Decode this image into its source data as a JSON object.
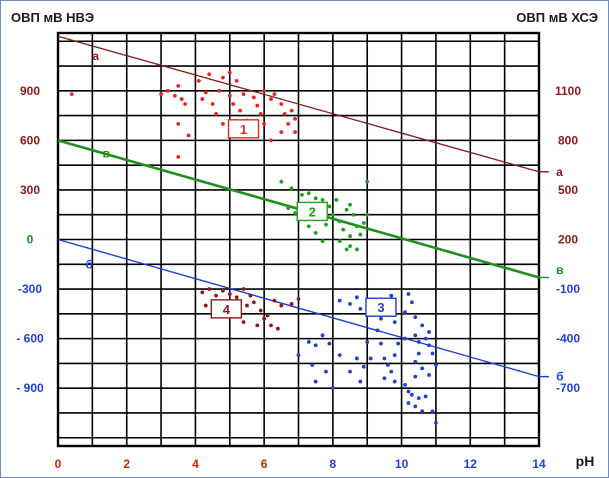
{
  "chart_data": {
    "type": "scatter",
    "title_left": "ОВП мВ НВЭ",
    "title_right": "ОВП мВ ХСЭ",
    "xlabel": "pH",
    "xlim": [
      0,
      14
    ],
    "ylim": [
      -1250,
      1250
    ],
    "grid": true,
    "x_ticks": [
      {
        "label": "0",
        "value": 0,
        "color": "#cc2200"
      },
      {
        "label": "2",
        "value": 2,
        "color": "#cc2200"
      },
      {
        "label": "4",
        "value": 4,
        "color": "#cc2200"
      },
      {
        "label": "6",
        "value": 6,
        "color": "#cc2200"
      },
      {
        "label": "8",
        "value": 8,
        "color": "#1f3fd6"
      },
      {
        "label": "10",
        "value": 10,
        "color": "#1f3fd6"
      },
      {
        "label": "12",
        "value": 12,
        "color": "#1f3fd6"
      },
      {
        "label": "14",
        "value": 14,
        "color": "#1f3fd6"
      }
    ],
    "left_ticks": [
      {
        "label": "900",
        "value": 900,
        "color": "#8b1a1a"
      },
      {
        "label": "600",
        "value": 600,
        "color": "#8b1a1a"
      },
      {
        "label": "300",
        "value": 300,
        "color": "#8b1a1a"
      },
      {
        "label": "0",
        "value": 0,
        "color": "#1f8f1f"
      },
      {
        "label": "-300",
        "value": -300,
        "color": "#1f3fd6"
      },
      {
        "label": "- 600",
        "value": -600,
        "color": "#1f3fd6"
      },
      {
        "label": "- 900",
        "value": -900,
        "color": "#1f3fd6"
      }
    ],
    "right_ticks": [
      {
        "label": "1100",
        "value": 900,
        "color": "#8b1a1a"
      },
      {
        "label": "800",
        "value": 600,
        "color": "#8b1a1a"
      },
      {
        "label": "500",
        "value": 300,
        "color": "#8b1a1a"
      },
      {
        "label": "200",
        "value": 0,
        "color": "#8b1a1a"
      },
      {
        "label": "-100",
        "value": -300,
        "color": "#1f3fd6"
      },
      {
        "label": "-400",
        "value": -600,
        "color": "#1f3fd6"
      },
      {
        "label": "-700",
        "value": -900,
        "color": "#1f3fd6"
      }
    ],
    "lines": [
      {
        "name": "а",
        "color": "#8b1a1a",
        "points": [
          [
            0,
            1230
          ],
          [
            14,
            410
          ]
        ],
        "width": 1.3
      },
      {
        "name": "в",
        "color": "#1f8f1f",
        "points": [
          [
            0,
            600
          ],
          [
            14,
            -230
          ]
        ],
        "width": 2.6
      },
      {
        "name": "б",
        "color": "#1f3fd6",
        "points": [
          [
            0,
            0
          ],
          [
            14,
            -830
          ]
        ],
        "width": 1.4
      }
    ],
    "line_labels": [
      {
        "text": "а",
        "color": "#8b1a1a",
        "x": 1.0,
        "y": 1110
      },
      {
        "text": "в",
        "color": "#1f8f1f",
        "x": 1.3,
        "y": 520
      },
      {
        "text": "б",
        "color": "#1f3fd6",
        "x": 0.8,
        "y": -150
      },
      {
        "text": "а",
        "color": "#8b1a1a",
        "x": 14.5,
        "y": 410
      },
      {
        "text": "в",
        "color": "#1f8f1f",
        "x": 14.5,
        "y": -185
      },
      {
        "text": "б",
        "color": "#1f3fd6",
        "x": 14.5,
        "y": -830
      }
    ],
    "series": [
      {
        "name": "1",
        "color": "#e8251f",
        "box": {
          "x": 5.4,
          "y": 670
        },
        "points": [
          [
            0.4,
            880
          ],
          [
            3.0,
            880
          ],
          [
            3.2,
            900
          ],
          [
            3.4,
            870
          ],
          [
            3.5,
            930
          ],
          [
            3.6,
            850
          ],
          [
            3.7,
            820
          ],
          [
            3.5,
            700
          ],
          [
            3.8,
            630
          ],
          [
            3.5,
            500
          ],
          [
            4.1,
            960
          ],
          [
            4.3,
            890
          ],
          [
            4.4,
            1000
          ],
          [
            4.2,
            850
          ],
          [
            4.5,
            820
          ],
          [
            4.7,
            900
          ],
          [
            4.8,
            980
          ],
          [
            5.0,
            1010
          ],
          [
            5.2,
            960
          ],
          [
            4.6,
            760
          ],
          [
            4.8,
            700
          ],
          [
            5.0,
            870
          ],
          [
            5.1,
            820
          ],
          [
            5.3,
            780
          ],
          [
            5.5,
            720
          ],
          [
            5.4,
            880
          ],
          [
            5.7,
            860
          ],
          [
            5.8,
            810
          ],
          [
            5.9,
            760
          ],
          [
            6.0,
            900
          ],
          [
            6.2,
            850
          ],
          [
            6.3,
            880
          ],
          [
            6.5,
            820
          ],
          [
            6.6,
            760
          ],
          [
            6.7,
            700
          ],
          [
            6.9,
            650
          ],
          [
            6.9,
            730
          ],
          [
            6.8,
            780
          ],
          [
            6.5,
            650
          ],
          [
            6.2,
            600
          ],
          [
            6.0,
            700
          ],
          [
            5.8,
            680
          ]
        ]
      },
      {
        "name": "2",
        "color": "#1f9f1f",
        "box": {
          "x": 7.4,
          "y": 170
        },
        "points": [
          [
            6.5,
            350
          ],
          [
            6.8,
            310
          ],
          [
            7.1,
            270
          ],
          [
            7.3,
            280
          ],
          [
            7.5,
            250
          ],
          [
            7.7,
            240
          ],
          [
            6.7,
            190
          ],
          [
            6.9,
            160
          ],
          [
            7.0,
            210
          ],
          [
            7.2,
            120
          ],
          [
            7.3,
            80
          ],
          [
            7.6,
            130
          ],
          [
            7.8,
            90
          ],
          [
            7.5,
            40
          ],
          [
            7.7,
            -10
          ],
          [
            7.9,
            200
          ],
          [
            8.0,
            150
          ],
          [
            8.1,
            240
          ],
          [
            8.2,
            110
          ],
          [
            8.3,
            60
          ],
          [
            8.4,
            180
          ],
          [
            8.5,
            210
          ],
          [
            8.6,
            150
          ],
          [
            8.7,
            80
          ],
          [
            8.5,
            20
          ],
          [
            8.8,
            30
          ],
          [
            8.9,
            100
          ],
          [
            9.0,
            150
          ],
          [
            8.7,
            -60
          ],
          [
            8.5,
            -40
          ],
          [
            8.4,
            -60
          ],
          [
            8.2,
            -10
          ],
          [
            9.0,
            350
          ]
        ]
      },
      {
        "name": "3",
        "color": "#1f3fd6",
        "box": {
          "x": 9.4,
          "y": -410
        },
        "points": [
          [
            8.2,
            -370
          ],
          [
            8.5,
            -390
          ],
          [
            8.7,
            -350
          ],
          [
            8.8,
            -420
          ],
          [
            9.4,
            -480
          ],
          [
            9.8,
            -500
          ],
          [
            9.7,
            -340
          ],
          [
            10.2,
            -330
          ],
          [
            10.3,
            -380
          ],
          [
            10.1,
            -440
          ],
          [
            10.4,
            -470
          ],
          [
            10.6,
            -520
          ],
          [
            10.8,
            -560
          ],
          [
            10.5,
            -620
          ],
          [
            10.8,
            -640
          ],
          [
            10.5,
            -690
          ],
          [
            10.4,
            -740
          ],
          [
            10.6,
            -780
          ],
          [
            10.4,
            -830
          ],
          [
            10.1,
            -880
          ],
          [
            10.2,
            -920
          ],
          [
            10.3,
            -940
          ],
          [
            10.5,
            -960
          ],
          [
            10.2,
            -990
          ],
          [
            10.4,
            -1010
          ],
          [
            10.6,
            -1040
          ],
          [
            10.9,
            -1040
          ],
          [
            11.0,
            -1110
          ],
          [
            10.7,
            -950
          ],
          [
            10.8,
            -820
          ],
          [
            11.0,
            -760
          ],
          [
            10.9,
            -690
          ],
          [
            10.4,
            -580
          ],
          [
            10.7,
            -600
          ],
          [
            9.3,
            -550
          ],
          [
            9.0,
            -620
          ],
          [
            9.4,
            -630
          ],
          [
            9.5,
            -720
          ],
          [
            9.6,
            -760
          ],
          [
            9.7,
            -800
          ],
          [
            9.5,
            -840
          ],
          [
            9.8,
            -860
          ],
          [
            9.1,
            -720
          ],
          [
            8.9,
            -770
          ],
          [
            8.7,
            -720
          ],
          [
            8.2,
            -700
          ],
          [
            8.5,
            -800
          ],
          [
            8.8,
            -860
          ],
          [
            7.3,
            -620
          ],
          [
            7.5,
            -640
          ],
          [
            7.7,
            -580
          ],
          [
            7.9,
            -630
          ],
          [
            7.0,
            -700
          ],
          [
            7.4,
            -760
          ],
          [
            7.8,
            -800
          ],
          [
            7.5,
            -860
          ],
          [
            8.0,
            -900
          ],
          [
            9.8,
            -700
          ],
          [
            10.1,
            -600
          ],
          [
            9.9,
            -630
          ]
        ]
      },
      {
        "name": "4",
        "color": "#8b1a1a",
        "box": {
          "x": 4.9,
          "y": -420
        },
        "points": [
          [
            4.2,
            -320
          ],
          [
            4.4,
            -300
          ],
          [
            4.6,
            -340
          ],
          [
            4.8,
            -310
          ],
          [
            5.0,
            -330
          ],
          [
            5.2,
            -350
          ],
          [
            5.4,
            -300
          ],
          [
            5.6,
            -340
          ],
          [
            4.3,
            -400
          ],
          [
            4.5,
            -430
          ],
          [
            4.7,
            -380
          ],
          [
            4.9,
            -460
          ],
          [
            5.1,
            -440
          ],
          [
            5.3,
            -420
          ],
          [
            5.5,
            -400
          ],
          [
            5.7,
            -380
          ],
          [
            5.9,
            -430
          ],
          [
            6.1,
            -460
          ],
          [
            6.2,
            -520
          ],
          [
            6.4,
            -540
          ],
          [
            6.0,
            -480
          ],
          [
            6.3,
            -370
          ],
          [
            6.5,
            -400
          ],
          [
            6.8,
            -390
          ],
          [
            7.0,
            -360
          ],
          [
            5.8,
            -520
          ],
          [
            5.4,
            -500
          ]
        ]
      }
    ]
  }
}
